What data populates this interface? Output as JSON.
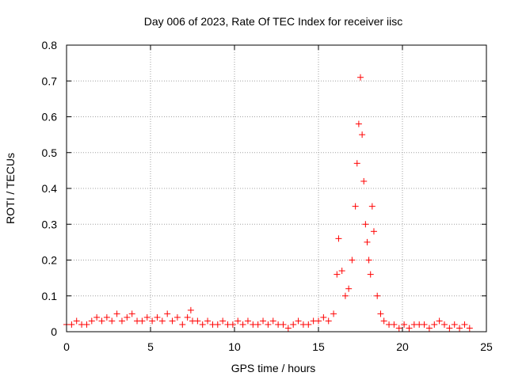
{
  "chart_data": {
    "type": "scatter",
    "title": "Day 006 of 2023, Rate Of TEC Index for receiver iisc",
    "xlabel": "GPS time / hours",
    "ylabel": "ROTI / TECUs",
    "xlim": [
      0,
      25
    ],
    "ylim": [
      0,
      0.8
    ],
    "xticks": [
      "0",
      "5",
      "10",
      "15",
      "20",
      "25"
    ],
    "yticks": [
      "0",
      "0.1",
      "0.2",
      "0.3",
      "0.4",
      "0.5",
      "0.6",
      "0.7",
      "0.8"
    ],
    "grid": true,
    "marker": "+",
    "colors": {
      "series": "#ff0000"
    },
    "x": [
      0.0,
      0.3,
      0.6,
      0.9,
      1.2,
      1.5,
      1.8,
      2.1,
      2.4,
      2.7,
      3.0,
      3.3,
      3.6,
      3.9,
      4.2,
      4.5,
      4.8,
      5.1,
      5.4,
      5.7,
      6.0,
      6.3,
      6.6,
      6.9,
      7.2,
      7.4,
      7.5,
      7.8,
      8.1,
      8.4,
      8.7,
      9.0,
      9.3,
      9.6,
      9.9,
      10.2,
      10.5,
      10.8,
      11.1,
      11.4,
      11.7,
      12.0,
      12.3,
      12.6,
      12.9,
      13.2,
      13.5,
      13.8,
      14.1,
      14.4,
      14.7,
      15.0,
      15.3,
      15.6,
      15.9,
      16.1,
      16.2,
      16.4,
      16.6,
      16.8,
      17.0,
      17.2,
      17.3,
      17.4,
      17.5,
      17.6,
      17.7,
      17.8,
      17.9,
      18.0,
      18.1,
      18.2,
      18.3,
      18.5,
      18.7,
      18.9,
      19.2,
      19.5,
      19.8,
      20.1,
      20.4,
      20.7,
      21.0,
      21.3,
      21.6,
      21.9,
      22.2,
      22.5,
      22.8,
      23.1,
      23.4,
      23.7,
      24.0
    ],
    "y": [
      0.02,
      0.02,
      0.03,
      0.02,
      0.02,
      0.03,
      0.04,
      0.03,
      0.04,
      0.03,
      0.05,
      0.03,
      0.04,
      0.05,
      0.03,
      0.03,
      0.04,
      0.03,
      0.04,
      0.03,
      0.05,
      0.03,
      0.04,
      0.02,
      0.04,
      0.06,
      0.03,
      0.03,
      0.02,
      0.03,
      0.02,
      0.02,
      0.03,
      0.02,
      0.02,
      0.03,
      0.02,
      0.03,
      0.02,
      0.02,
      0.03,
      0.02,
      0.03,
      0.02,
      0.02,
      0.01,
      0.02,
      0.03,
      0.02,
      0.02,
      0.03,
      0.03,
      0.04,
      0.03,
      0.05,
      0.16,
      0.26,
      0.17,
      0.1,
      0.12,
      0.2,
      0.35,
      0.47,
      0.58,
      0.71,
      0.55,
      0.42,
      0.3,
      0.25,
      0.2,
      0.16,
      0.35,
      0.28,
      0.1,
      0.05,
      0.03,
      0.02,
      0.02,
      0.01,
      0.02,
      0.01,
      0.02,
      0.02,
      0.02,
      0.01,
      0.02,
      0.03,
      0.02,
      0.01,
      0.02,
      0.01,
      0.02,
      0.01
    ]
  }
}
